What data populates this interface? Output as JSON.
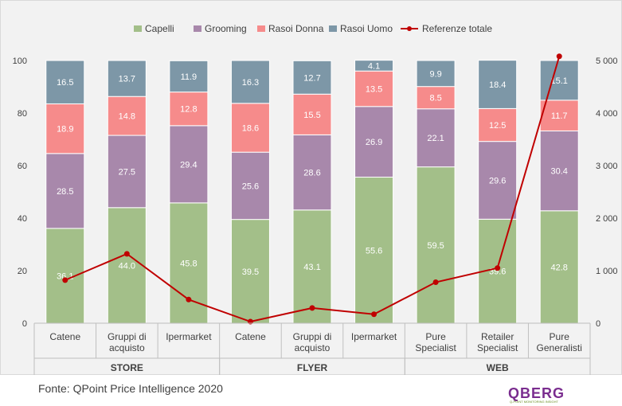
{
  "chart_data": {
    "type": "bar",
    "stacked": true,
    "categories": [
      "Catene",
      "Gruppi di acquisto",
      "Ipermarket",
      "Catene",
      "Gruppi di acquisto",
      "Ipermarket",
      "Pure Specialist",
      "Retailer Specialist",
      "Pure Generalisti"
    ],
    "category_lines": [
      [
        "Catene"
      ],
      [
        "Gruppi di",
        "acquisto"
      ],
      [
        "Ipermarket"
      ],
      [
        "Catene"
      ],
      [
        "Gruppi di",
        "acquisto"
      ],
      [
        "Ipermarket"
      ],
      [
        "Pure",
        "Specialist"
      ],
      [
        "Retailer",
        "Specialist"
      ],
      [
        "Pure",
        "Generalisti"
      ]
    ],
    "groups": [
      {
        "label": "STORE",
        "start": 0,
        "end": 2
      },
      {
        "label": "FLYER",
        "start": 3,
        "end": 5
      },
      {
        "label": "WEB",
        "start": 6,
        "end": 8
      }
    ],
    "series": [
      {
        "name": "Capelli",
        "color": "#a3bf89",
        "values": [
          36.1,
          44.0,
          45.8,
          39.5,
          43.1,
          55.6,
          59.5,
          39.6,
          42.8
        ],
        "labels": [
          "36.1",
          "44.0",
          "45.8",
          "39.5",
          "43.1",
          "55.6",
          "59.5",
          "39.6",
          "42.8"
        ]
      },
      {
        "name": "Grooming",
        "color": "#a888ab",
        "values": [
          28.5,
          27.5,
          29.4,
          25.6,
          28.6,
          26.9,
          22.1,
          29.6,
          30.4
        ],
        "labels": [
          "28.5",
          "27.5",
          "29.4",
          "25.6",
          "28.6",
          "26.9",
          "22.1",
          "29.6",
          "30.4"
        ]
      },
      {
        "name": "Rasoi Donna",
        "color": "#f68b8b",
        "values": [
          18.9,
          14.8,
          12.8,
          18.6,
          15.5,
          13.5,
          8.5,
          12.5,
          11.7
        ],
        "labels": [
          "18.9",
          "14.8",
          "12.8",
          "18.6",
          "15.5",
          "13.5",
          "8.5",
          "12.5",
          "11.7"
        ]
      },
      {
        "name": "Rasoi Uomo",
        "color": "#7d97a7",
        "values": [
          16.5,
          13.7,
          11.9,
          16.3,
          12.7,
          4.1,
          9.9,
          18.4,
          15.1
        ],
        "labels": [
          "16.5",
          "13.7",
          "11.9",
          "16.3",
          "12.7",
          "4.1",
          "9.9",
          "18.4",
          "15.1"
        ]
      },
      {
        "name": "Referenze totale",
        "type": "line",
        "axis": "right",
        "color": "#c00000",
        "values": [
          820,
          1320,
          450,
          30,
          290,
          170,
          780,
          1050,
          5080
        ]
      }
    ],
    "y_left": {
      "min": 0,
      "max": 100,
      "ticks": [
        0,
        20,
        40,
        60,
        80,
        100
      ],
      "tick_labels": [
        "0",
        "20",
        "40",
        "60",
        "80",
        "100"
      ]
    },
    "y_right": {
      "min": 0,
      "max": 5000,
      "ticks": [
        0,
        1000,
        2000,
        3000,
        4000,
        5000
      ],
      "tick_labels": [
        "0",
        "1 000",
        "2 000",
        "3 000",
        "4 000",
        "5 000"
      ]
    },
    "grid": false,
    "legend_position": "top"
  },
  "footer": {
    "source": "Fonte: QPoint Price Intelligence 2020",
    "logo_text": "QBERG",
    "logo_tagline": "Q-POINT MONITORING INSIGHT"
  }
}
